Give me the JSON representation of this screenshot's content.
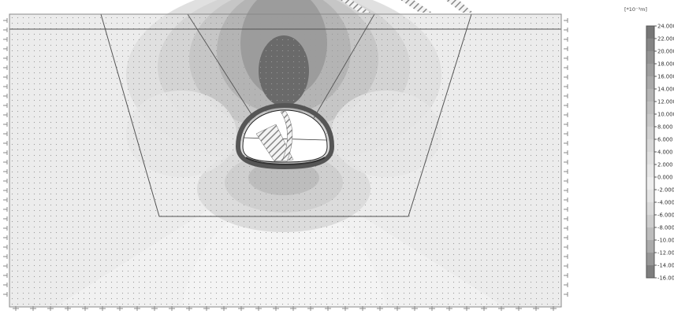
{
  "legend": {
    "unit": "[*10⁻³m]",
    "ticks": [
      "24.000",
      "22.000",
      "20.000",
      "18.000",
      "16.000",
      "14.000",
      "12.000",
      "10.000",
      "8.000",
      "6.000",
      "4.000",
      "2.000",
      "0.000",
      "-2.000",
      "-4.000",
      "-6.000",
      "-8.000",
      "-10.000",
      "-12.000",
      "-14.000",
      "-16.000"
    ],
    "colors": [
      "#777777",
      "#858585",
      "#929292",
      "#9e9e9e",
      "#a9a9a9",
      "#b4b4b4",
      "#bebebe",
      "#c7c7c7",
      "#d0d0d0",
      "#d8d8d8",
      "#e0e0e0",
      "#e7e7e7",
      "#eeeeee",
      "#e5e5e5",
      "#dadada",
      "#cdcdcd",
      "#bdbdbd",
      "#ababab",
      "#969696",
      "#7e7e7e"
    ]
  },
  "colors": {
    "background": "#ffffff",
    "model_fill": "#ececec",
    "dark_contour": "#5a5a5a",
    "outline": "#444444"
  }
}
